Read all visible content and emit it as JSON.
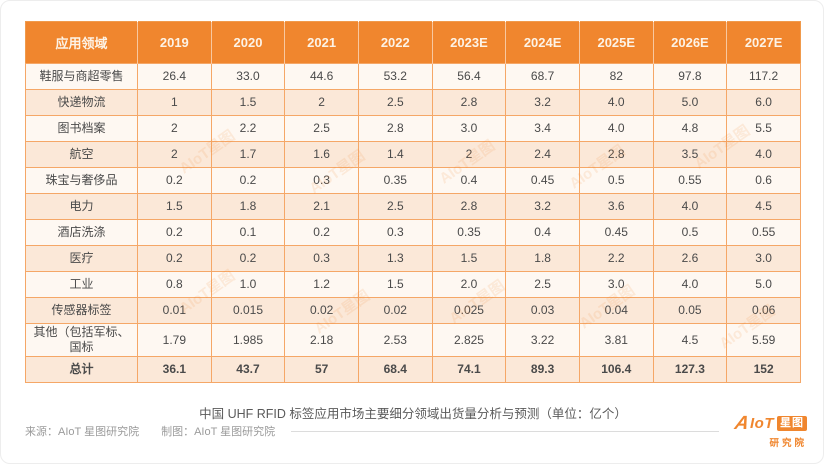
{
  "colors": {
    "header_bg": "#F0862E",
    "row_light": "#FEF8F2",
    "row_peach": "#FBE8D8",
    "grid_border": "#F5A767",
    "text": "#4A4A4A",
    "caption_text": "#5A5A5A",
    "footer_text": "#9B9B9B",
    "logo_orange": "#F0862E"
  },
  "chart_data": {
    "type": "table",
    "title": "中国 UHF RFID 标签应用市场主要细分领域出货量分析与预测（单位：亿个）",
    "unit": "亿个",
    "columns": [
      "应用领域",
      "2019",
      "2020",
      "2021",
      "2022",
      "2023E",
      "2024E",
      "2025E",
      "2026E",
      "2027E"
    ],
    "rows": [
      {
        "label": "鞋服与商超零售",
        "values": [
          "26.4",
          "33.0",
          "44.6",
          "53.2",
          "56.4",
          "68.7",
          "82",
          "97.8",
          "117.2"
        ],
        "bold": false
      },
      {
        "label": "快递物流",
        "values": [
          "1",
          "1.5",
          "2",
          "2.5",
          "2.8",
          "3.2",
          "4.0",
          "5.0",
          "6.0"
        ],
        "bold": false
      },
      {
        "label": "图书档案",
        "values": [
          "2",
          "2.2",
          "2.5",
          "2.8",
          "3.0",
          "3.4",
          "4.0",
          "4.8",
          "5.5"
        ],
        "bold": false
      },
      {
        "label": "航空",
        "values": [
          "2",
          "1.7",
          "1.6",
          "1.4",
          "2",
          "2.4",
          "2.8",
          "3.5",
          "4.0"
        ],
        "bold": false
      },
      {
        "label": "珠宝与奢侈品",
        "values": [
          "0.2",
          "0.2",
          "0.3",
          "0.35",
          "0.4",
          "0.45",
          "0.5",
          "0.55",
          "0.6"
        ],
        "bold": false
      },
      {
        "label": "电力",
        "values": [
          "1.5",
          "1.8",
          "2.1",
          "2.5",
          "2.8",
          "3.2",
          "3.6",
          "4.0",
          "4.5"
        ],
        "bold": false
      },
      {
        "label": "酒店洗涤",
        "values": [
          "0.2",
          "0.1",
          "0.2",
          "0.3",
          "0.35",
          "0.4",
          "0.45",
          "0.5",
          "0.55"
        ],
        "bold": false
      },
      {
        "label": "医疗",
        "values": [
          "0.2",
          "0.2",
          "0.3",
          "1.3",
          "1.5",
          "1.8",
          "2.2",
          "2.6",
          "3.0"
        ],
        "bold": false
      },
      {
        "label": "工业",
        "values": [
          "0.8",
          "1.0",
          "1.2",
          "1.5",
          "2.0",
          "2.5",
          "3.0",
          "4.0",
          "5.0"
        ],
        "bold": false
      },
      {
        "label": "传感器标签",
        "values": [
          "0.01",
          "0.015",
          "0.02",
          "0.02",
          "0.025",
          "0.03",
          "0.04",
          "0.05",
          "0.06"
        ],
        "bold": false
      },
      {
        "label": "其他（包括军标、国标",
        "values": [
          "1.79",
          "1.985",
          "2.18",
          "2.53",
          "2.825",
          "3.22",
          "3.81",
          "4.5",
          "5.59"
        ],
        "bold": false
      },
      {
        "label": "总计",
        "values": [
          "36.1",
          "43.7",
          "57",
          "68.4",
          "74.1",
          "89.3",
          "106.4",
          "127.3",
          "152"
        ],
        "bold": true
      }
    ]
  },
  "caption": "中国 UHF RFID 标签应用市场主要细分领域出货量分析与预测（单位：亿个）",
  "footer": {
    "source": "来源：AIoT 星图研究院",
    "maker": "制图：AIoT 星图研究院"
  },
  "logo": {
    "a": "A",
    "rest": "IoT",
    "box": "星图",
    "sub": "研究院"
  },
  "watermark": {
    "text": "AIoT星图"
  }
}
